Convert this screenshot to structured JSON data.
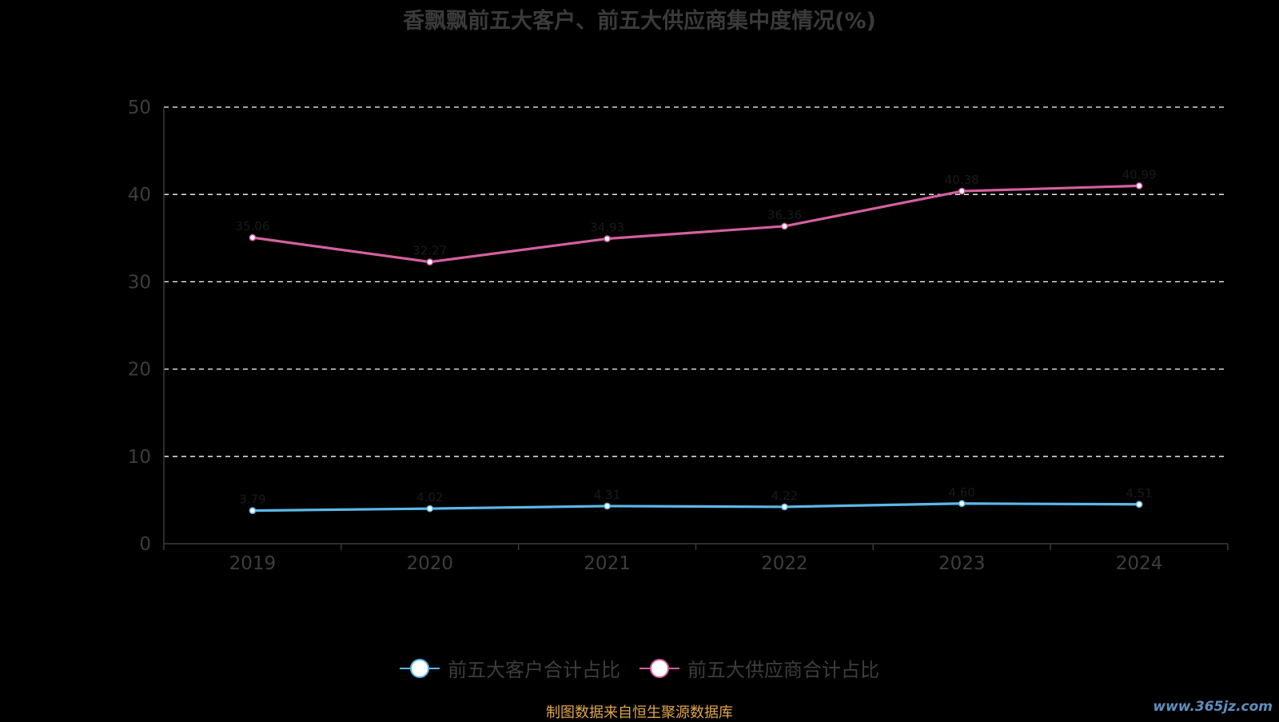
{
  "chart_data": {
    "type": "line",
    "title": "香飘飘前五大客户、前五大供应商集中度情况(%)",
    "categories": [
      "2019",
      "2020",
      "2021",
      "2022",
      "2023",
      "2024"
    ],
    "ylim": [
      0,
      50
    ],
    "yticks": [
      "0",
      "10",
      "20",
      "30",
      "40",
      "50"
    ],
    "grid": true,
    "grid_style": "dashed",
    "legend_position": "bottom",
    "series": [
      {
        "name": "前五大客户合计占比",
        "color": "#5bb8e8",
        "values": [
          3.79,
          4.02,
          4.31,
          4.22,
          4.6,
          4.51
        ]
      },
      {
        "name": "前五大供应商合计占比",
        "color": "#d4609f",
        "values": [
          35.06,
          32.27,
          34.93,
          36.36,
          40.38,
          40.99
        ]
      }
    ]
  },
  "source_note": "制图数据来自恒生聚源数据库",
  "watermark": "www.365jz.com"
}
